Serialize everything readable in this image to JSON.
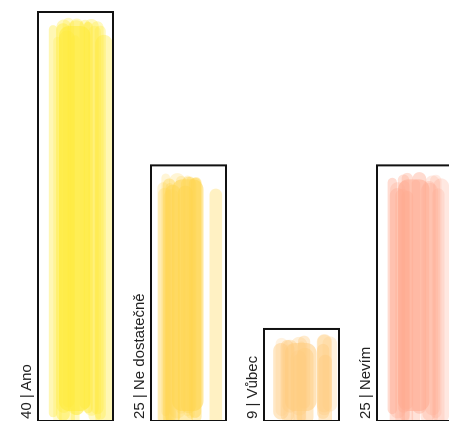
{
  "chart_data": {
    "type": "bar",
    "categories": [
      "Ano",
      "Ne dostatečně",
      "Vůbec",
      "Nevím"
    ],
    "values": [
      40,
      25,
      9,
      25
    ],
    "labels": [
      "40 | Ano",
      "25 | Ne dostatečně",
      "9 | Vůbec",
      "25 | Nevím"
    ],
    "title": "",
    "xlabel": "",
    "ylabel": "",
    "ylim": [
      0,
      40
    ],
    "grid": false,
    "legend": "none",
    "colors": [
      "#FFEB3B",
      "#FFD54F",
      "#FFCC80",
      "#FFAB91"
    ]
  }
}
